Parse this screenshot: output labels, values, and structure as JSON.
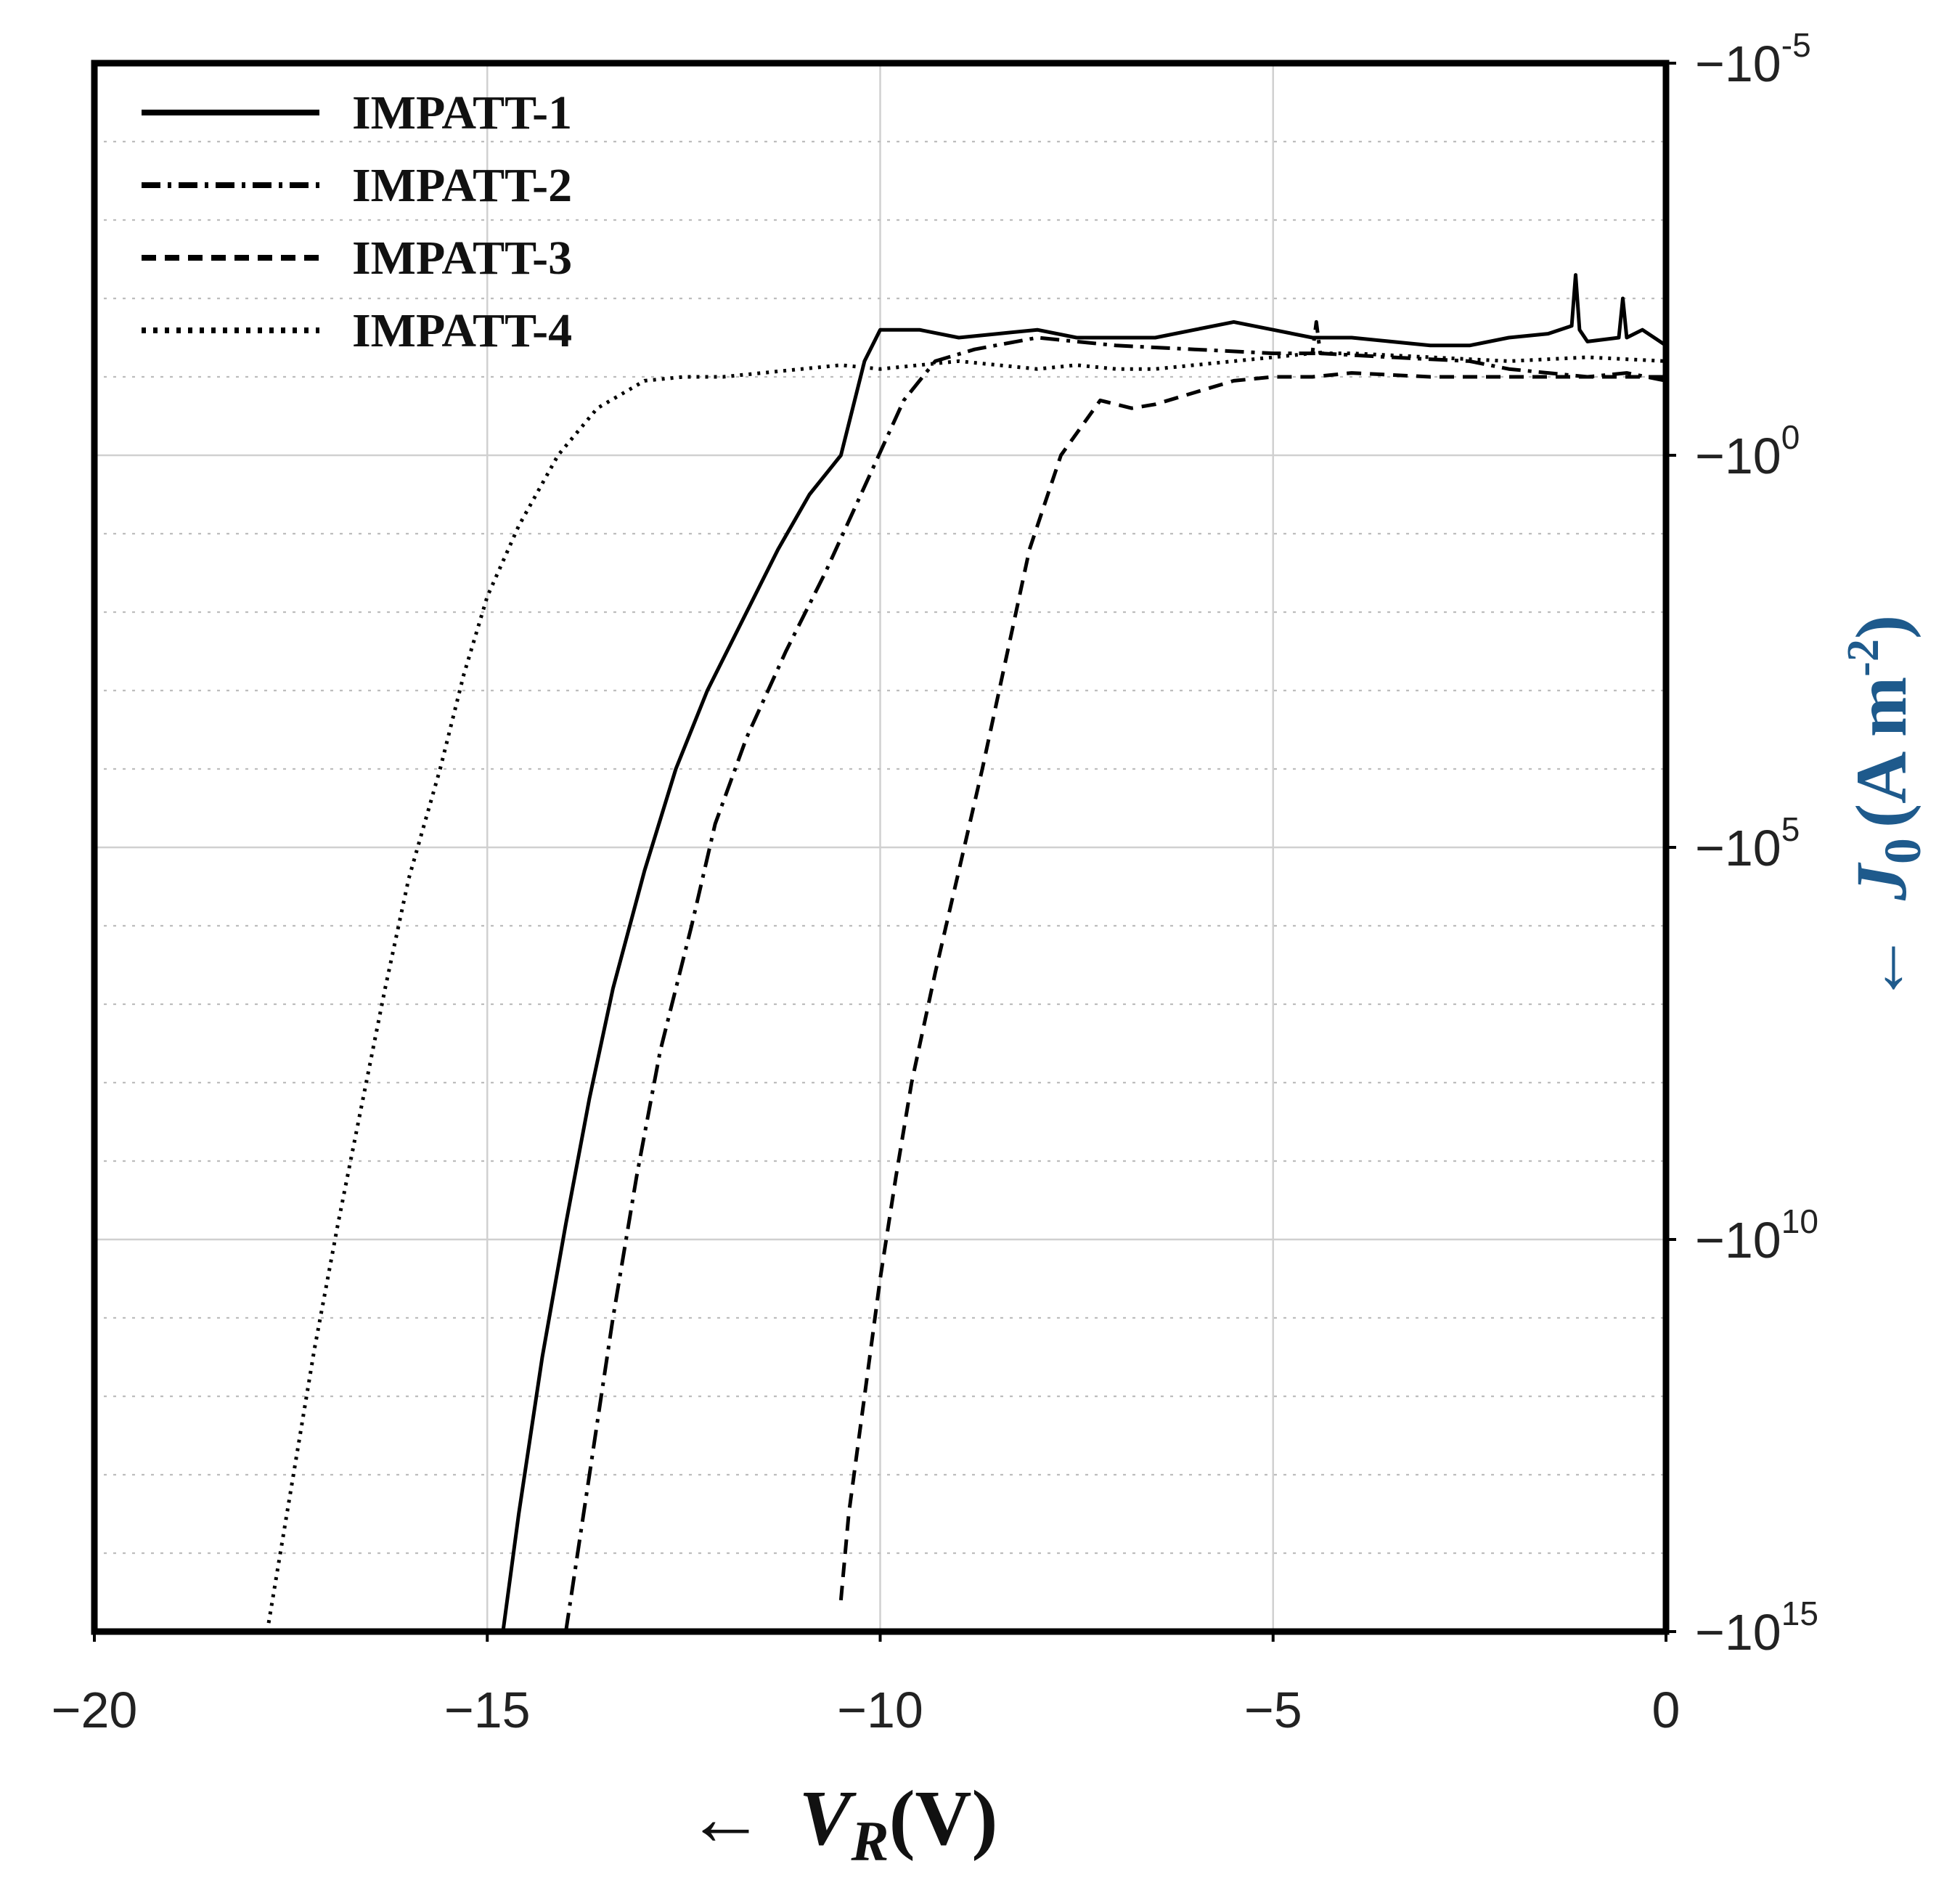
{
  "chart_data": {
    "type": "line",
    "xlabel": {
      "arrow": "←",
      "symbol": "V",
      "subscript": "R",
      "unit": "(V)"
    },
    "ylabel": {
      "arrow": "←",
      "symbol": "J",
      "subscript": "0",
      "unit_pre": "(A m",
      "unit_exp": "-2",
      "unit_post": ")",
      "color": "#1e5a8c"
    },
    "x_axis": {
      "min": -20,
      "max": 0,
      "ticks": [
        {
          "value": -20,
          "label": "−20"
        },
        {
          "value": -15,
          "label": "−15"
        },
        {
          "value": -10,
          "label": "−10"
        },
        {
          "value": -5,
          "label": "−5"
        },
        {
          "value": 0,
          "label": "0"
        }
      ]
    },
    "y_axis": {
      "scale": "symlog-exponent",
      "position": "right",
      "ticks": [
        {
          "exp": -5,
          "base": "−10",
          "sup": "-5"
        },
        {
          "exp": 0,
          "base": "−10",
          "sup": "0"
        },
        {
          "exp": 5,
          "base": "−10",
          "sup": "5"
        },
        {
          "exp": 10,
          "base": "−10",
          "sup": "10"
        },
        {
          "exp": 15,
          "base": "−10",
          "sup": "15"
        }
      ]
    },
    "grid": true,
    "legend": {
      "placement": "top-left"
    },
    "series": [
      {
        "name": "IMPATT-1",
        "style": "solid",
        "points": [
          [
            -14.8,
            15
          ],
          [
            -14.6,
            13.5
          ],
          [
            -14.3,
            11.5
          ],
          [
            -14.0,
            9.8
          ],
          [
            -13.7,
            8.2
          ],
          [
            -13.4,
            6.8
          ],
          [
            -13.0,
            5.3
          ],
          [
            -12.6,
            4.0
          ],
          [
            -12.2,
            3.0
          ],
          [
            -11.7,
            2.0
          ],
          [
            -11.3,
            1.2
          ],
          [
            -10.9,
            0.5
          ],
          [
            -10.5,
            0.0
          ],
          [
            -10.2,
            -1.2
          ],
          [
            -10.0,
            -1.6
          ],
          [
            -9.5,
            -1.6
          ],
          [
            -9.0,
            -1.5
          ],
          [
            -8.5,
            -1.55
          ],
          [
            -8.0,
            -1.6
          ],
          [
            -7.5,
            -1.5
          ],
          [
            -7.0,
            -1.5
          ],
          [
            -6.5,
            -1.5
          ],
          [
            -6.0,
            -1.6
          ],
          [
            -5.5,
            -1.7
          ],
          [
            -5.0,
            -1.6
          ],
          [
            -4.5,
            -1.5
          ],
          [
            -4.0,
            -1.5
          ],
          [
            -3.5,
            -1.45
          ],
          [
            -3.0,
            -1.4
          ],
          [
            -2.5,
            -1.4
          ],
          [
            -2.0,
            -1.5
          ],
          [
            -1.5,
            -1.55
          ],
          [
            -1.2,
            -1.65
          ],
          [
            -1.15,
            -2.3
          ],
          [
            -1.1,
            -1.6
          ],
          [
            -1.0,
            -1.45
          ],
          [
            -0.6,
            -1.5
          ],
          [
            -0.55,
            -2.0
          ],
          [
            -0.5,
            -1.5
          ],
          [
            -0.3,
            -1.6
          ],
          [
            0.0,
            -1.4
          ]
        ]
      },
      {
        "name": "IMPATT-2",
        "style": "dashdot",
        "points": [
          [
            -14.0,
            15
          ],
          [
            -13.7,
            13.0
          ],
          [
            -13.4,
            11.0
          ],
          [
            -13.1,
            9.2
          ],
          [
            -12.8,
            7.6
          ],
          [
            -12.4,
            6.0
          ],
          [
            -12.1,
            4.7
          ],
          [
            -11.7,
            3.6
          ],
          [
            -11.2,
            2.5
          ],
          [
            -10.7,
            1.5
          ],
          [
            -10.2,
            0.4
          ],
          [
            -9.7,
            -0.7
          ],
          [
            -9.3,
            -1.2
          ],
          [
            -8.8,
            -1.35
          ],
          [
            -8.0,
            -1.5
          ],
          [
            -7.0,
            -1.4
          ],
          [
            -6.0,
            -1.35
          ],
          [
            -5.0,
            -1.3
          ],
          [
            -4.5,
            -1.3
          ],
          [
            -4.45,
            -1.7
          ],
          [
            -4.4,
            -1.3
          ],
          [
            -3.5,
            -1.25
          ],
          [
            -2.5,
            -1.2
          ],
          [
            -2.0,
            -1.1
          ],
          [
            -1.5,
            -1.05
          ],
          [
            -1.0,
            -1.0
          ],
          [
            -0.5,
            -1.05
          ],
          [
            0.0,
            -0.95
          ]
        ]
      },
      {
        "name": "IMPATT-3",
        "style": "dashed",
        "points": [
          [
            -10.5,
            14.6
          ],
          [
            -10.4,
            13.5
          ],
          [
            -10.2,
            12.0
          ],
          [
            -10.0,
            10.5
          ],
          [
            -9.8,
            9.2
          ],
          [
            -9.6,
            8.0
          ],
          [
            -9.3,
            6.6
          ],
          [
            -9.0,
            5.3
          ],
          [
            -8.7,
            4.0
          ],
          [
            -8.4,
            2.6
          ],
          [
            -8.1,
            1.2
          ],
          [
            -7.7,
            0.0
          ],
          [
            -7.2,
            -0.7
          ],
          [
            -6.8,
            -0.6
          ],
          [
            -6.5,
            -0.65
          ],
          [
            -6.0,
            -0.8
          ],
          [
            -5.5,
            -0.95
          ],
          [
            -5.0,
            -1.0
          ],
          [
            -4.5,
            -1.0
          ],
          [
            -4.0,
            -1.05
          ],
          [
            -3.0,
            -1.0
          ],
          [
            -2.0,
            -1.0
          ],
          [
            -1.0,
            -1.0
          ],
          [
            0.0,
            -1.0
          ]
        ]
      },
      {
        "name": "IMPATT-4",
        "style": "dotted",
        "points": [
          [
            -17.8,
            15
          ],
          [
            -17.5,
            13.2
          ],
          [
            -17.2,
            11.4
          ],
          [
            -16.9,
            9.8
          ],
          [
            -16.6,
            8.3
          ],
          [
            -16.3,
            6.8
          ],
          [
            -16.0,
            5.4
          ],
          [
            -15.6,
            4.0
          ],
          [
            -15.3,
            2.8
          ],
          [
            -15.0,
            1.8
          ],
          [
            -14.6,
            0.9
          ],
          [
            -14.1,
            0.0
          ],
          [
            -13.6,
            -0.6
          ],
          [
            -13.0,
            -0.95
          ],
          [
            -12.5,
            -1.0
          ],
          [
            -12.0,
            -1.0
          ],
          [
            -11.0,
            -1.1
          ],
          [
            -10.5,
            -1.15
          ],
          [
            -10.0,
            -1.1
          ],
          [
            -9.5,
            -1.15
          ],
          [
            -9.0,
            -1.2
          ],
          [
            -8.5,
            -1.15
          ],
          [
            -8.0,
            -1.1
          ],
          [
            -7.5,
            -1.15
          ],
          [
            -7.0,
            -1.1
          ],
          [
            -6.5,
            -1.1
          ],
          [
            -6.0,
            -1.15
          ],
          [
            -5.5,
            -1.2
          ],
          [
            -5.0,
            -1.25
          ],
          [
            -4.5,
            -1.3
          ],
          [
            -4.0,
            -1.3
          ],
          [
            -3.0,
            -1.25
          ],
          [
            -2.0,
            -1.2
          ],
          [
            -1.0,
            -1.25
          ],
          [
            0.0,
            -1.2
          ]
        ]
      }
    ]
  }
}
